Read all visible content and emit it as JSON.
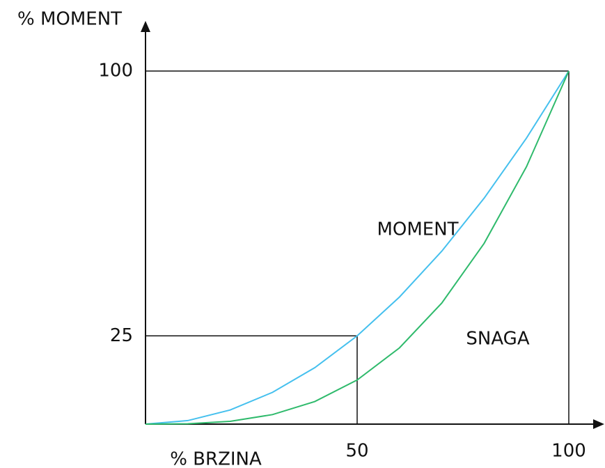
{
  "chart_data": {
    "type": "line",
    "x_label": "% BRZINA",
    "y_label": "% MOMENT",
    "x": [
      0,
      10,
      20,
      30,
      40,
      50,
      60,
      70,
      80,
      90,
      100
    ],
    "series": [
      {
        "name": "MOMENT",
        "color": "#45c0ee",
        "values": [
          0,
          1,
          4,
          9,
          16,
          25,
          36,
          49,
          64,
          81,
          100
        ]
      },
      {
        "name": "SNAGA",
        "color": "#2fba6c",
        "values": [
          0,
          0.1,
          0.8,
          2.7,
          6.4,
          12.5,
          21.6,
          34.3,
          51.2,
          72.9,
          100
        ]
      }
    ],
    "xlim": [
      0,
      100
    ],
    "ylim": [
      0,
      100
    ],
    "xticks": [
      50,
      100
    ],
    "yticks": [
      25,
      100
    ]
  }
}
